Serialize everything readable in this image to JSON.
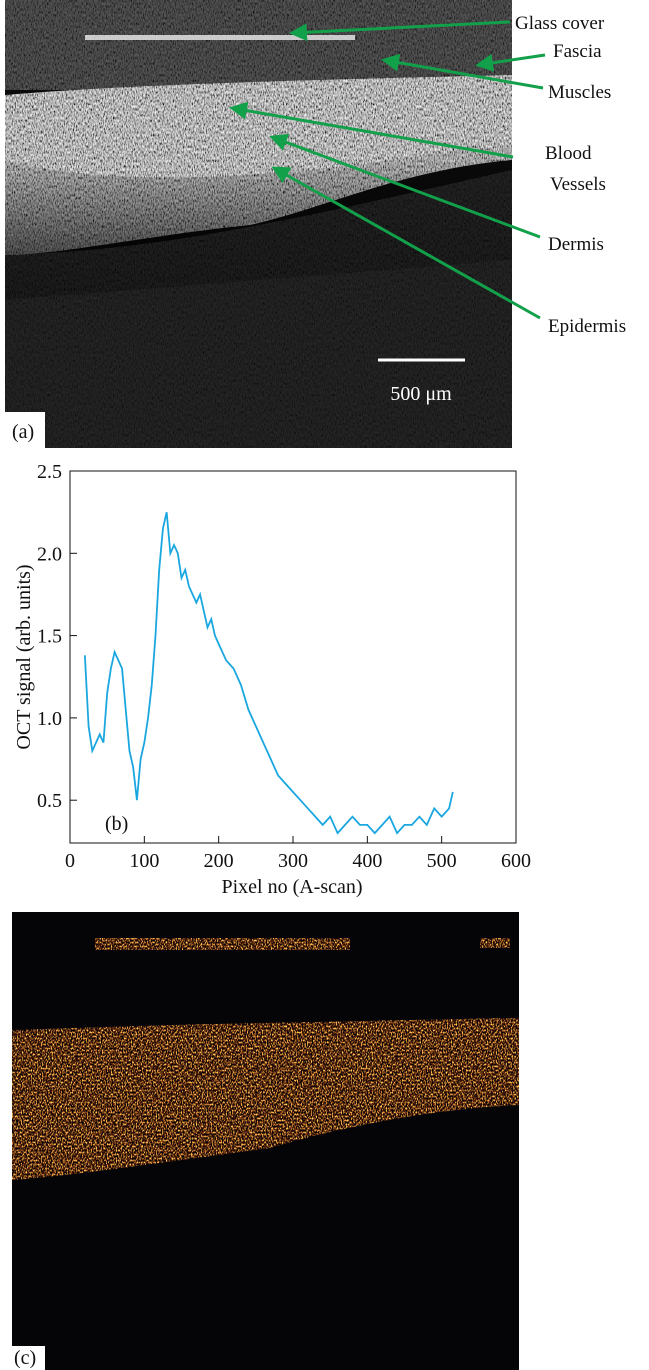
{
  "panel_a": {
    "annotations": [
      "Glass cover",
      "Fascia",
      "Muscles",
      "Blood",
      "Vessels",
      "Dermis",
      "Epidermis"
    ],
    "scale_bar": "500 μm",
    "panel_label": "(a)"
  },
  "chart_data": {
    "type": "line",
    "panel_label": "(b)",
    "x_label": "Pixel no (A-scan)",
    "y_label": "OCT signal  (arb. units)",
    "color": "#1aa7e0",
    "x": [
      20,
      25,
      30,
      35,
      40,
      45,
      50,
      55,
      60,
      65,
      70,
      75,
      80,
      85,
      90,
      95,
      100,
      105,
      110,
      115,
      120,
      125,
      130,
      135,
      140,
      145,
      150,
      155,
      160,
      165,
      170,
      175,
      180,
      185,
      190,
      195,
      200,
      210,
      220,
      230,
      240,
      250,
      260,
      270,
      280,
      290,
      300,
      310,
      320,
      330,
      340,
      350,
      360,
      370,
      380,
      390,
      400,
      410,
      420,
      430,
      440,
      450,
      460,
      470,
      480,
      490,
      500,
      510,
      515
    ],
    "values": [
      1.38,
      0.95,
      0.8,
      0.85,
      0.9,
      0.85,
      1.15,
      1.3,
      1.4,
      1.35,
      1.3,
      1.05,
      0.8,
      0.7,
      0.5,
      0.75,
      0.85,
      1.0,
      1.2,
      1.5,
      1.9,
      2.15,
      2.25,
      2.0,
      2.05,
      2.0,
      1.85,
      1.9,
      1.8,
      1.75,
      1.7,
      1.75,
      1.65,
      1.55,
      1.6,
      1.5,
      1.45,
      1.35,
      1.3,
      1.2,
      1.05,
      0.95,
      0.85,
      0.75,
      0.65,
      0.6,
      0.55,
      0.5,
      0.45,
      0.4,
      0.35,
      0.4,
      0.3,
      0.35,
      0.4,
      0.35,
      0.35,
      0.3,
      0.35,
      0.4,
      0.3,
      0.35,
      0.35,
      0.4,
      0.35,
      0.45,
      0.4,
      0.45,
      0.55
    ],
    "xlim": [
      0,
      600
    ],
    "xticks": [
      0,
      100,
      200,
      300,
      400,
      500,
      600
    ],
    "ylim": [
      0.24,
      2.5
    ],
    "yticks": [
      0.5,
      {
        "value": 1,
        "label": "1.0"
      },
      1.5,
      {
        "value": 2,
        "label": "2.0"
      },
      2.5
    ]
  },
  "panel_c": {
    "panel_label": "(c)"
  }
}
